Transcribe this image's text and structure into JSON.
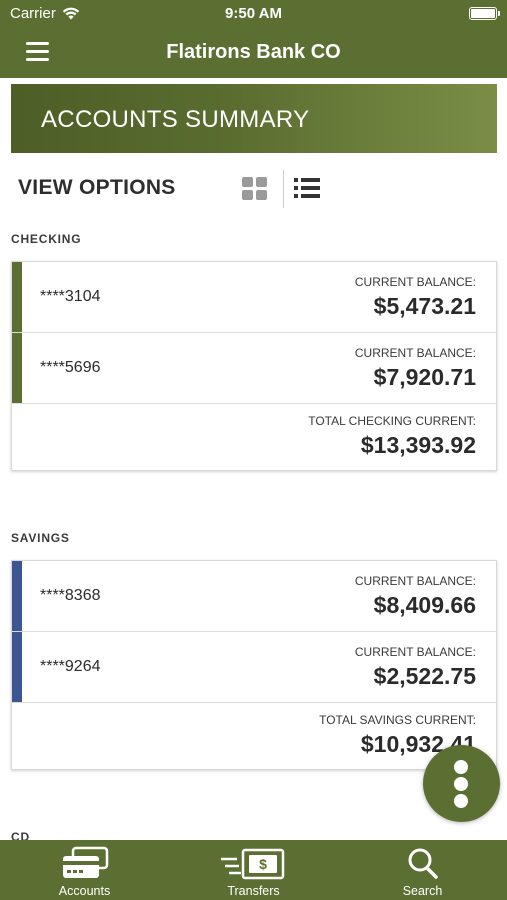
{
  "status_bar": {
    "carrier": "Carrier",
    "time": "9:50 AM"
  },
  "header": {
    "title": "Flatirons Bank CO"
  },
  "banner": {
    "title": "ACCOUNTS SUMMARY"
  },
  "view_options": {
    "label": "VIEW OPTIONS",
    "selected": "list"
  },
  "colors": {
    "brand_green": "#5c6f32",
    "checking_accent": "#5c6f32",
    "savings_accent": "#3b5692"
  },
  "checking": {
    "label": "CHECKING",
    "accounts": [
      {
        "number": "****3104",
        "balance_label": "CURRENT BALANCE:",
        "balance": "$5,473.21"
      },
      {
        "number": "****5696",
        "balance_label": "CURRENT BALANCE:",
        "balance": "$7,920.71"
      }
    ],
    "total_label": "TOTAL CHECKING CURRENT:",
    "total": "$13,393.92"
  },
  "savings": {
    "label": "SAVINGS",
    "accounts": [
      {
        "number": "****8368",
        "balance_label": "CURRENT BALANCE:",
        "balance": "$8,409.66"
      },
      {
        "number": "****9264",
        "balance_label": "CURRENT BALANCE:",
        "balance": "$2,522.75"
      }
    ],
    "total_label": "TOTAL SAVINGS CURRENT:",
    "total": "$10,932.41"
  },
  "cd": {
    "label": "CD"
  },
  "tabbar": {
    "items": [
      {
        "label": "Accounts",
        "icon": "accounts-icon"
      },
      {
        "label": "Transfers",
        "icon": "transfers-icon"
      },
      {
        "label": "Search",
        "icon": "search-icon"
      }
    ]
  }
}
